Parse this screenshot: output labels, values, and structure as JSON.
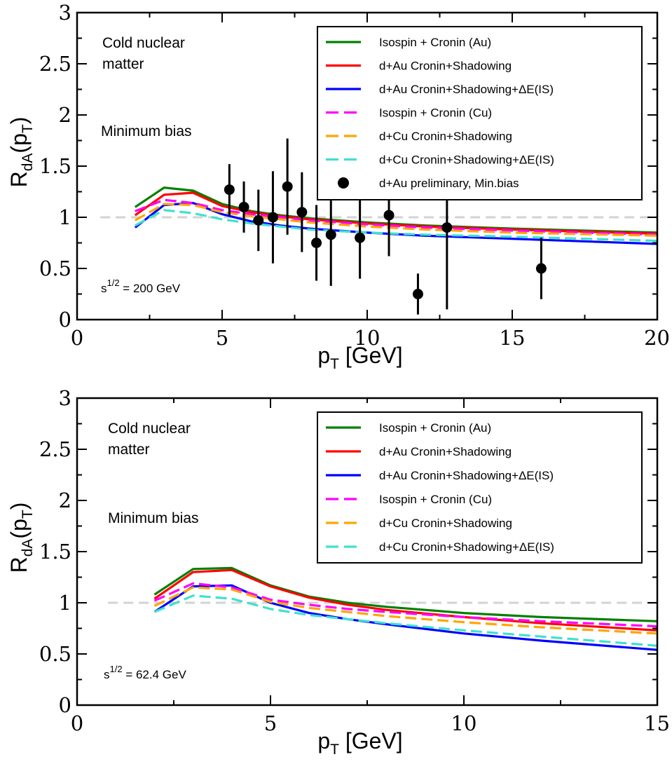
{
  "chart_data": [
    {
      "type": "line",
      "ylabel": {
        "main": "R",
        "sub": "dA",
        "rest": "(p",
        "rest_sub": "T",
        "tail": ")"
      },
      "xlabel": {
        "main": "p",
        "sub": "T",
        "tail": " [GeV]"
      },
      "xlim": [
        0,
        20
      ],
      "ylim": [
        0,
        3
      ],
      "xticks": [
        0,
        5,
        10,
        15,
        20
      ],
      "yticks": [
        0,
        0.5,
        1,
        1.5,
        2,
        2.5,
        3
      ],
      "xtick_labels": [
        "0",
        "5",
        "10",
        "15",
        "20"
      ],
      "ytick_labels": [
        "0",
        "0.5",
        "1",
        "1.5",
        "2",
        "2.5",
        "3"
      ],
      "reference_line": 1,
      "annotations": {
        "cold_line1": "Cold nuclear",
        "cold_line2": "matter",
        "centrality": "Minimum bias",
        "energy_base": "s",
        "energy_sup": "1/2",
        "energy_value": " = 200 GeV"
      },
      "series": [
        {
          "name": "Isospin + Cronin (Au)",
          "color": "#008000",
          "dash": "solid",
          "x": [
            2,
            3,
            4,
            5,
            6,
            7,
            8,
            10,
            12,
            15,
            20
          ],
          "y": [
            1.1,
            1.29,
            1.26,
            1.13,
            1.06,
            1.02,
            0.99,
            0.95,
            0.92,
            0.89,
            0.85
          ]
        },
        {
          "name": "d+Au Cronin+Shadowing",
          "color": "#ff0000",
          "dash": "solid",
          "x": [
            2,
            3,
            4,
            5,
            6,
            7,
            8,
            10,
            12,
            15,
            20
          ],
          "y": [
            1.02,
            1.22,
            1.24,
            1.11,
            1.05,
            1.01,
            0.98,
            0.94,
            0.91,
            0.88,
            0.84
          ]
        },
        {
          "name": "d+Au Cronin+Shadowing+ΔE(IS)",
          "color": "#0000ff",
          "dash": "solid",
          "x": [
            2,
            3,
            4,
            5,
            6,
            7,
            8,
            10,
            12,
            15,
            20
          ],
          "y": [
            0.9,
            1.12,
            1.14,
            1.03,
            0.96,
            0.92,
            0.89,
            0.85,
            0.82,
            0.79,
            0.74
          ]
        },
        {
          "name": "Isospin + Cronin (Cu)",
          "color": "#ff00ff",
          "dash": "dash",
          "x": [
            2,
            3,
            4,
            5,
            6,
            7,
            8,
            10,
            12,
            15,
            20
          ],
          "y": [
            1.06,
            1.17,
            1.14,
            1.07,
            1.03,
            1.0,
            0.97,
            0.93,
            0.9,
            0.87,
            0.83
          ]
        },
        {
          "name": "d+Cu Cronin+Shadowing",
          "color": "#ffa500",
          "dash": "dash",
          "x": [
            2,
            3,
            4,
            5,
            6,
            7,
            8,
            10,
            12,
            15,
            20
          ],
          "y": [
            0.97,
            1.13,
            1.12,
            1.05,
            1.01,
            0.98,
            0.95,
            0.91,
            0.88,
            0.85,
            0.82
          ]
        },
        {
          "name": "d+Cu Cronin+Shadowing+ΔE(IS)",
          "color": "#40e0d0",
          "dash": "dash",
          "x": [
            2,
            3,
            4,
            5,
            6,
            7,
            8,
            10,
            12,
            15,
            20
          ],
          "y": [
            0.92,
            1.07,
            1.04,
            0.98,
            0.94,
            0.91,
            0.88,
            0.85,
            0.83,
            0.81,
            0.77
          ]
        }
      ],
      "points": {
        "name": "d+Au preliminary, Min.bias",
        "color": "#000000",
        "x": [
          5.25,
          5.75,
          6.25,
          6.75,
          7.25,
          7.75,
          8.25,
          8.75,
          9.75,
          10.75,
          11.75,
          12.75,
          16.0
        ],
        "y": [
          1.27,
          1.1,
          0.97,
          1.0,
          1.3,
          1.05,
          0.75,
          0.83,
          0.8,
          1.02,
          0.25,
          0.9,
          0.5
        ],
        "err": [
          0.25,
          0.25,
          0.3,
          0.45,
          0.47,
          0.39,
          0.37,
          0.5,
          0.4,
          0.4,
          0.2,
          0.8,
          0.3
        ]
      },
      "legend_position": "top-right"
    },
    {
      "type": "line",
      "ylabel": {
        "main": "R",
        "sub": "dA",
        "rest": "(p",
        "rest_sub": "T",
        "tail": ")"
      },
      "xlabel": {
        "main": "p",
        "sub": "T",
        "tail": " [GeV]"
      },
      "xlim": [
        0,
        15
      ],
      "ylim": [
        0,
        3
      ],
      "xticks": [
        0,
        5,
        10,
        15
      ],
      "yticks": [
        0,
        0.5,
        1,
        1.5,
        2,
        2.5,
        3
      ],
      "xtick_labels": [
        "0",
        "5",
        "10",
        "15"
      ],
      "ytick_labels": [
        "0",
        "0.5",
        "1",
        "1.5",
        "2",
        "2.5",
        "3"
      ],
      "reference_line": 1,
      "annotations": {
        "cold_line1": "Cold nuclear",
        "cold_line2": "matter",
        "centrality": "Minimum bias",
        "energy_base": "s",
        "energy_sup": "1/2",
        "energy_value": " = 62.4 GeV"
      },
      "series": [
        {
          "name": "Isospin + Cronin (Au)",
          "color": "#008000",
          "dash": "solid",
          "x": [
            2,
            3,
            4,
            5,
            6,
            7,
            8,
            10,
            12,
            15
          ],
          "y": [
            1.08,
            1.33,
            1.34,
            1.17,
            1.06,
            1.0,
            0.96,
            0.9,
            0.86,
            0.82
          ]
        },
        {
          "name": "d+Au Cronin+Shadowing",
          "color": "#ff0000",
          "dash": "solid",
          "x": [
            2,
            3,
            4,
            5,
            6,
            7,
            8,
            10,
            12,
            15
          ],
          "y": [
            1.04,
            1.3,
            1.32,
            1.16,
            1.05,
            0.98,
            0.93,
            0.86,
            0.8,
            0.73
          ]
        },
        {
          "name": "d+Au Cronin+Shadowing+ΔE(IS)",
          "color": "#0000ff",
          "dash": "solid",
          "x": [
            2,
            3,
            4,
            5,
            6,
            7,
            8,
            10,
            12,
            15
          ],
          "y": [
            0.91,
            1.16,
            1.17,
            1.0,
            0.9,
            0.84,
            0.79,
            0.7,
            0.63,
            0.54
          ]
        },
        {
          "name": "Isospin + Cronin (Cu)",
          "color": "#ff00ff",
          "dash": "dash",
          "x": [
            2,
            3,
            4,
            5,
            6,
            7,
            8,
            10,
            12,
            15
          ],
          "y": [
            1.02,
            1.19,
            1.15,
            1.03,
            0.98,
            0.94,
            0.91,
            0.86,
            0.82,
            0.77
          ]
        },
        {
          "name": "d+Cu Cronin+Shadowing",
          "color": "#ffa500",
          "dash": "dash",
          "x": [
            2,
            3,
            4,
            5,
            6,
            7,
            8,
            10,
            12,
            15
          ],
          "y": [
            0.97,
            1.15,
            1.13,
            1.01,
            0.95,
            0.91,
            0.87,
            0.81,
            0.76,
            0.7
          ]
        },
        {
          "name": "d+Cu Cronin+Shadowing+ΔE(IS)",
          "color": "#40e0d0",
          "dash": "dash",
          "x": [
            2,
            3,
            4,
            5,
            6,
            7,
            8,
            10,
            12,
            15
          ],
          "y": [
            0.91,
            1.07,
            1.04,
            0.94,
            0.88,
            0.84,
            0.8,
            0.73,
            0.67,
            0.58
          ]
        }
      ],
      "legend_position": "top-right"
    }
  ]
}
